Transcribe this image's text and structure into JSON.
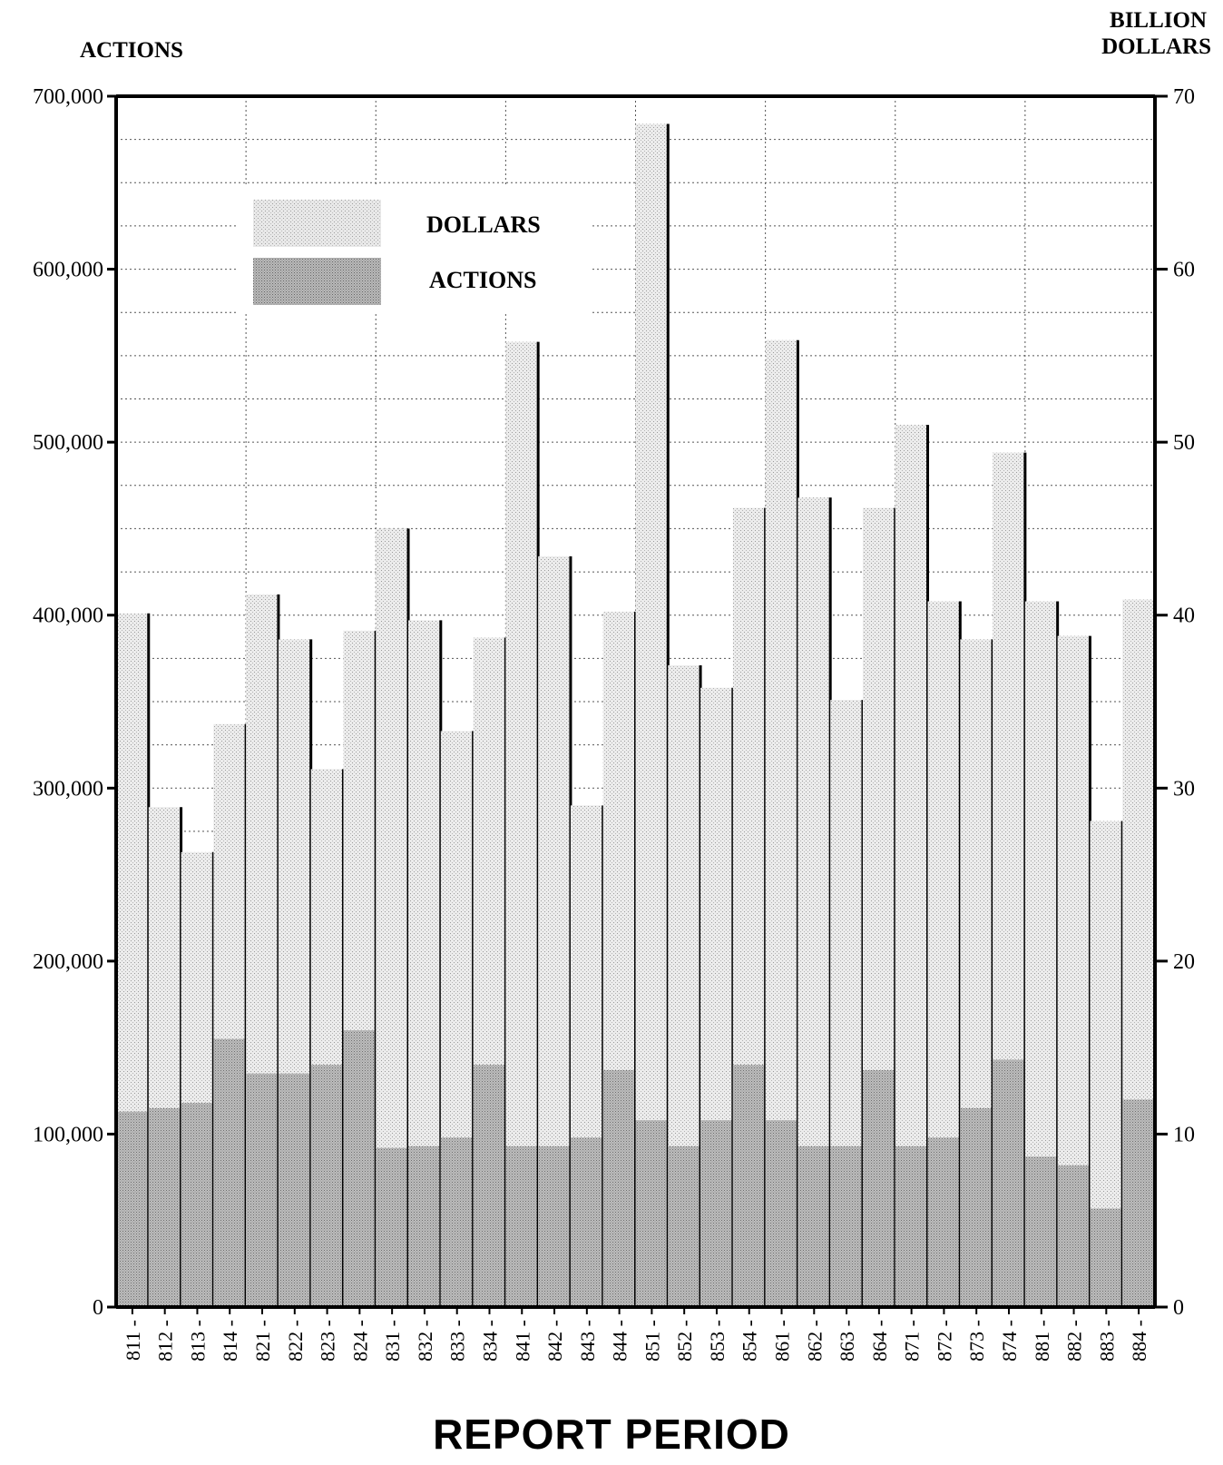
{
  "chart_data": {
    "type": "bar",
    "title": "",
    "xlabel": "REPORT PERIOD",
    "ylabel_left": "ACTIONS",
    "ylabel_right": [
      "BILLION",
      "DOLLARS"
    ],
    "ylim_left": [
      0,
      700000
    ],
    "ylim_right": [
      0,
      70
    ],
    "yticks_left": [
      "0",
      "100,000",
      "200,000",
      "300,000",
      "400,000",
      "500,000",
      "600,000",
      "700,000"
    ],
    "yticks_right": [
      "0",
      "10",
      "20",
      "30",
      "40",
      "50",
      "60",
      "70"
    ],
    "grid": true,
    "legend_position": "top-left",
    "categories": [
      "811",
      "812",
      "813",
      "814",
      "821",
      "822",
      "823",
      "824",
      "831",
      "832",
      "833",
      "834",
      "841",
      "842",
      "843",
      "844",
      "851",
      "852",
      "853",
      "854",
      "861",
      "862",
      "863",
      "864",
      "871",
      "872",
      "873",
      "874",
      "881",
      "882",
      "883",
      "884"
    ],
    "series": [
      {
        "name": "DOLLARS",
        "axis": "right",
        "color": "#dcdcdc",
        "values": [
          40.1,
          28.9,
          26.3,
          33.7,
          41.2,
          38.6,
          31.1,
          39.1,
          45.0,
          39.7,
          33.3,
          38.7,
          55.8,
          43.4,
          29.0,
          40.2,
          68.4,
          37.1,
          35.8,
          46.2,
          55.9,
          46.8,
          35.1,
          46.2,
          51.0,
          40.8,
          38.6,
          49.4,
          40.8,
          38.8,
          28.1,
          40.9
        ]
      },
      {
        "name": "ACTIONS",
        "axis": "left",
        "color": "#a8a8a8",
        "values": [
          113000,
          115000,
          118000,
          155000,
          135000,
          135000,
          140000,
          160000,
          92000,
          93000,
          98000,
          140000,
          93000,
          93000,
          98000,
          137000,
          108000,
          93000,
          108000,
          140000,
          108000,
          93000,
          93000,
          137000,
          93000,
          98000,
          115000,
          143000,
          87000,
          82000,
          57000,
          120000
        ]
      }
    ]
  }
}
